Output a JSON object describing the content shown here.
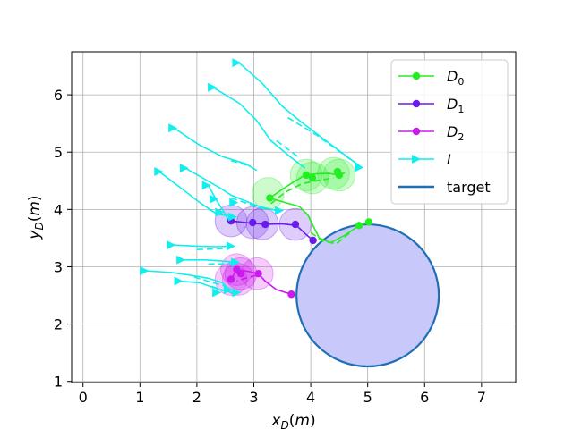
{
  "chart_data": {
    "type": "line",
    "xlabel": "x_D(m)",
    "ylabel": "y_D(m)",
    "xlim": [
      -0.2,
      7.6
    ],
    "ylim": [
      0.98,
      6.75
    ],
    "xticks": [
      0,
      1,
      2,
      3,
      4,
      5,
      6,
      7
    ],
    "yticks": [
      1,
      2,
      3,
      4,
      5,
      6
    ],
    "grid": true,
    "legend_position": "top-right",
    "colors": {
      "D0": "#22ee22",
      "D1": "#6a1aee",
      "D2": "#cc1aee",
      "I": "#11eeee",
      "target": "#1f6fb4",
      "target_fill": "#c8c8fa"
    },
    "legend": [
      {
        "key": "D0",
        "label": "D_0",
        "marker": "circle"
      },
      {
        "key": "D1",
        "label": "D_1",
        "marker": "circle"
      },
      {
        "key": "D2",
        "label": "D_2",
        "marker": "circle"
      },
      {
        "key": "I",
        "label": "I",
        "marker": "triangle"
      },
      {
        "key": "target",
        "label": "target",
        "marker": "line"
      }
    ],
    "target": {
      "cx": 5.0,
      "cy": 2.5,
      "r": 1.25
    },
    "capture_radius": 0.28,
    "series": {
      "D0": {
        "solid": [
          [
            [
              5.02,
              3.78
            ],
            [
              4.85,
              3.72
            ],
            [
              4.6,
              3.55
            ],
            [
              4.35,
              3.42
            ],
            [
              4.15,
              3.5
            ],
            [
              4.05,
              3.7
            ],
            [
              3.95,
              3.9
            ],
            [
              3.8,
              4.05
            ],
            [
              3.55,
              4.12
            ],
            [
              3.28,
              4.2
            ]
          ],
          [
            [
              3.28,
              4.2
            ],
            [
              3.5,
              4.35
            ],
            [
              3.7,
              4.48
            ],
            [
              3.9,
              4.6
            ],
            [
              4.1,
              4.62
            ],
            [
              4.3,
              4.63
            ],
            [
              4.5,
              4.6
            ]
          ],
          [
            [
              4.5,
              4.6
            ],
            [
              4.6,
              4.64
            ]
          ]
        ],
        "dashed": [
          [
            [
              4.0,
              3.6
            ],
            [
              4.2,
              3.45
            ],
            [
              4.45,
              3.4
            ],
            [
              4.7,
              3.6
            ]
          ],
          [
            [
              3.3,
              4.1
            ],
            [
              3.55,
              4.3
            ],
            [
              3.85,
              4.45
            ],
            [
              4.1,
              4.5
            ],
            [
              4.4,
              4.55
            ]
          ]
        ],
        "markers": [
          [
            5.02,
            3.78
          ],
          [
            4.85,
            3.72
          ],
          [
            3.28,
            4.2
          ],
          [
            3.92,
            4.6
          ],
          [
            4.03,
            4.55
          ],
          [
            4.5,
            4.6
          ],
          [
            4.47,
            4.66
          ]
        ],
        "captures": [
          [
            3.25,
            4.28
          ],
          [
            3.92,
            4.6
          ],
          [
            4.03,
            4.55
          ],
          [
            4.4,
            4.63
          ],
          [
            4.5,
            4.6
          ]
        ]
      },
      "D1": {
        "solid": [
          [
            [
              4.04,
              3.46
            ],
            [
              3.9,
              3.58
            ],
            [
              3.75,
              3.72
            ],
            [
              3.5,
              3.75
            ],
            [
              3.2,
              3.74
            ],
            [
              2.95,
              3.76
            ],
            [
              2.6,
              3.8
            ]
          ]
        ],
        "dashed": [],
        "markers": [
          [
            4.04,
            3.46
          ],
          [
            3.73,
            3.74
          ],
          [
            3.2,
            3.74
          ],
          [
            2.98,
            3.77
          ],
          [
            2.6,
            3.8
          ]
        ],
        "captures": [
          [
            2.6,
            3.8
          ],
          [
            2.98,
            3.77
          ],
          [
            3.15,
            3.75
          ],
          [
            3.73,
            3.74
          ]
        ]
      },
      "D2": {
        "solid": [
          [
            [
              3.66,
              2.52
            ],
            [
              3.4,
              2.6
            ],
            [
              3.2,
              2.75
            ],
            [
              3.08,
              2.88
            ],
            [
              2.9,
              2.92
            ],
            [
              2.7,
              2.95
            ]
          ],
          [
            [
              2.7,
              2.95
            ],
            [
              2.6,
              2.78
            ]
          ]
        ],
        "dashed": [
          [
            [
              3.05,
              2.85
            ],
            [
              2.85,
              2.8
            ],
            [
              2.7,
              2.75
            ]
          ]
        ],
        "markers": [
          [
            3.66,
            2.52
          ],
          [
            3.08,
            2.88
          ],
          [
            2.77,
            2.88
          ],
          [
            2.7,
            2.95
          ],
          [
            2.6,
            2.78
          ]
        ],
        "captures": [
          [
            2.77,
            2.88
          ],
          [
            2.7,
            2.95
          ],
          [
            2.73,
            2.78
          ],
          [
            3.06,
            2.88
          ],
          [
            2.6,
            2.78
          ]
        ]
      },
      "I": {
        "trajectories": [
          {
            "solid": [
              [
                2.75,
                6.55
              ],
              [
                3.15,
                6.2
              ],
              [
                3.5,
                5.8
              ],
              [
                3.8,
                5.55
              ],
              [
                4.2,
                5.25
              ],
              [
                4.6,
                4.95
              ],
              [
                4.9,
                4.73
              ]
            ],
            "dashed": [
              [
                3.6,
                5.6
              ],
              [
                4.1,
                5.3
              ],
              [
                4.8,
                4.8
              ]
            ]
          },
          {
            "solid": [
              [
                2.3,
                6.12
              ],
              [
                2.75,
                5.85
              ],
              [
                3.05,
                5.55
              ],
              [
                3.3,
                5.2
              ],
              [
                3.6,
                4.95
              ],
              [
                3.9,
                4.72
              ]
            ],
            "dashed": [
              [
                3.4,
                5.2
              ],
              [
                3.8,
                4.9
              ]
            ]
          },
          {
            "solid": [
              [
                1.6,
                5.42
              ],
              [
                2.05,
                5.12
              ],
              [
                2.45,
                4.92
              ],
              [
                2.85,
                4.8
              ],
              [
                3.05,
                4.68
              ]
            ],
            "dashed": [
              [
                2.6,
                4.85
              ],
              [
                2.95,
                4.75
              ]
            ]
          },
          {
            "solid": [
              [
                1.8,
                4.72
              ],
              [
                2.1,
                4.55
              ],
              [
                2.4,
                4.38
              ],
              [
                2.6,
                4.25
              ],
              [
                2.85,
                4.15
              ],
              [
                3.1,
                4.05
              ],
              [
                3.4,
                3.98
              ]
            ],
            "dashed": [
              [
                2.6,
                4.2
              ],
              [
                3.2,
                4.0
              ]
            ]
          },
          {
            "solid": [
              [
                1.35,
                4.65
              ],
              [
                1.75,
                4.35
              ],
              [
                2.05,
                4.12
              ],
              [
                2.35,
                3.92
              ],
              [
                2.6,
                3.88
              ]
            ],
            "dashed": [
              [
                2.2,
                4.0
              ],
              [
                2.45,
                3.9
              ]
            ]
          },
          {
            "solid": [
              [
                2.2,
                4.42
              ],
              [
                2.35,
                4.15
              ],
              [
                2.5,
                3.92
              ],
              [
                2.58,
                3.75
              ]
            ],
            "dashed": []
          },
          {
            "solid": [
              [
                1.58,
                3.38
              ],
              [
                2.0,
                3.36
              ],
              [
                2.35,
                3.35
              ],
              [
                2.62,
                3.36
              ]
            ],
            "dashed": [
              [
                2.0,
                3.3
              ],
              [
                2.55,
                3.32
              ]
            ]
          },
          {
            "solid": [
              [
                1.75,
                3.12
              ],
              [
                2.15,
                3.12
              ],
              [
                2.45,
                3.1
              ],
              [
                2.68,
                3.08
              ]
            ],
            "dashed": [
              [
                2.2,
                3.05
              ],
              [
                2.6,
                3.05
              ]
            ]
          },
          {
            "solid": [
              [
                1.1,
                2.93
              ],
              [
                1.55,
                2.9
              ],
              [
                1.9,
                2.85
              ],
              [
                2.2,
                2.8
              ],
              [
                2.45,
                2.72
              ],
              [
                2.55,
                2.62
              ]
            ],
            "dashed": [
              [
                1.95,
                2.82
              ],
              [
                2.5,
                2.66
              ]
            ]
          },
          {
            "solid": [
              [
                1.7,
                2.75
              ],
              [
                2.05,
                2.72
              ],
              [
                2.4,
                2.6
              ],
              [
                2.62,
                2.55
              ]
            ],
            "dashed": [
              [
                2.25,
                2.66
              ],
              [
                2.55,
                2.56
              ]
            ]
          }
        ],
        "arrows": [
          [
            2.7,
            6.56,
            0
          ],
          [
            2.27,
            6.13,
            0
          ],
          [
            1.58,
            5.42,
            0
          ],
          [
            1.33,
            4.66,
            0
          ],
          [
            1.78,
            4.72,
            0
          ],
          [
            2.17,
            4.42,
            0
          ],
          [
            2.3,
            4.18,
            0
          ],
          [
            1.55,
            3.38,
            0
          ],
          [
            1.72,
            3.12,
            0
          ],
          [
            1.08,
            2.93,
            0
          ],
          [
            1.68,
            2.75,
            0
          ],
          [
            2.55,
            2.6,
            0
          ],
          [
            4.85,
            4.73,
            0
          ],
          [
            2.6,
            3.36,
            0
          ],
          [
            2.68,
            3.08,
            0
          ],
          [
            2.4,
            3.95,
            0
          ],
          [
            2.65,
            4.12,
            0
          ],
          [
            3.45,
            3.98,
            0
          ],
          [
            2.63,
            3.87,
            0
          ],
          [
            2.7,
            2.55,
            0
          ],
          [
            2.35,
            2.55,
            0
          ]
        ]
      }
    }
  }
}
